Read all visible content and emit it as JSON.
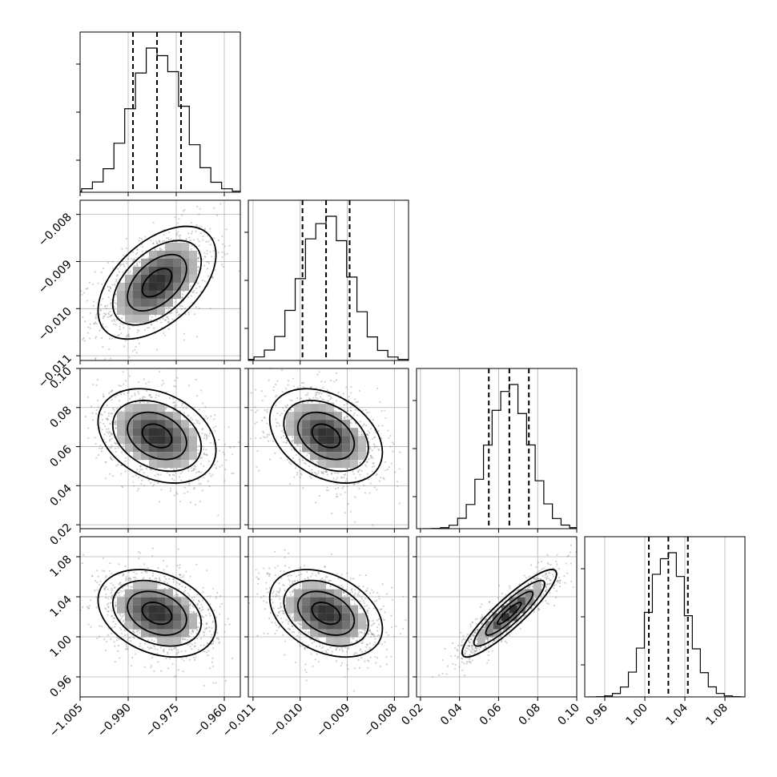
{
  "chart_data": {
    "type": "corner",
    "parameters": [
      {
        "mean": -0.981,
        "std": 0.008,
        "range": [
          -1.005,
          -0.955
        ],
        "ticks": [
          -1.005,
          -0.99,
          -0.975,
          -0.96
        ],
        "tick_labels": [
          "−1.005",
          "−0.990",
          "−0.975",
          "−0.960"
        ],
        "quantiles": [
          -0.9885,
          -0.981,
          -0.9735
        ]
      },
      {
        "mean": -0.00945,
        "std": 0.00052,
        "range": [
          -0.0111,
          -0.0077
        ],
        "ticks": [
          -0.011,
          -0.01,
          -0.009,
          -0.008
        ],
        "tick_labels": [
          "−0.011",
          "−0.010",
          "−0.009",
          "−0.008"
        ],
        "quantiles": [
          -0.00995,
          -0.00945,
          -0.00895
        ]
      },
      {
        "mean": 0.0655,
        "std": 0.0105,
        "range": [
          0.018,
          0.1
        ],
        "ticks": [
          0.02,
          0.04,
          0.06,
          0.08,
          0.1
        ],
        "tick_labels": [
          "0.02",
          "0.04",
          "0.06",
          "0.08",
          "0.10"
        ],
        "quantiles": [
          0.055,
          0.0655,
          0.0755
        ]
      },
      {
        "mean": 1.0235,
        "std": 0.019,
        "range": [
          0.94,
          1.1
        ],
        "ticks": [
          0.96,
          1.0,
          1.04,
          1.08
        ],
        "tick_labels": [
          "0.96",
          "1.00",
          "1.04",
          "1.08"
        ],
        "quantiles": [
          1.004,
          1.0235,
          1.043
        ]
      }
    ],
    "correlations": [
      [
        1.0,
        0.5,
        -0.3,
        -0.3
      ],
      [
        0.5,
        1.0,
        -0.35,
        -0.35
      ],
      [
        -0.3,
        -0.35,
        1.0,
        0.9
      ],
      [
        -0.3,
        -0.35,
        0.9,
        1.0
      ]
    ],
    "histogram_bins": 20,
    "grid": true,
    "show_quantile_lines": true,
    "contour_levels_sigma": [
      0.5,
      1.0,
      1.5,
      2.0
    ]
  }
}
